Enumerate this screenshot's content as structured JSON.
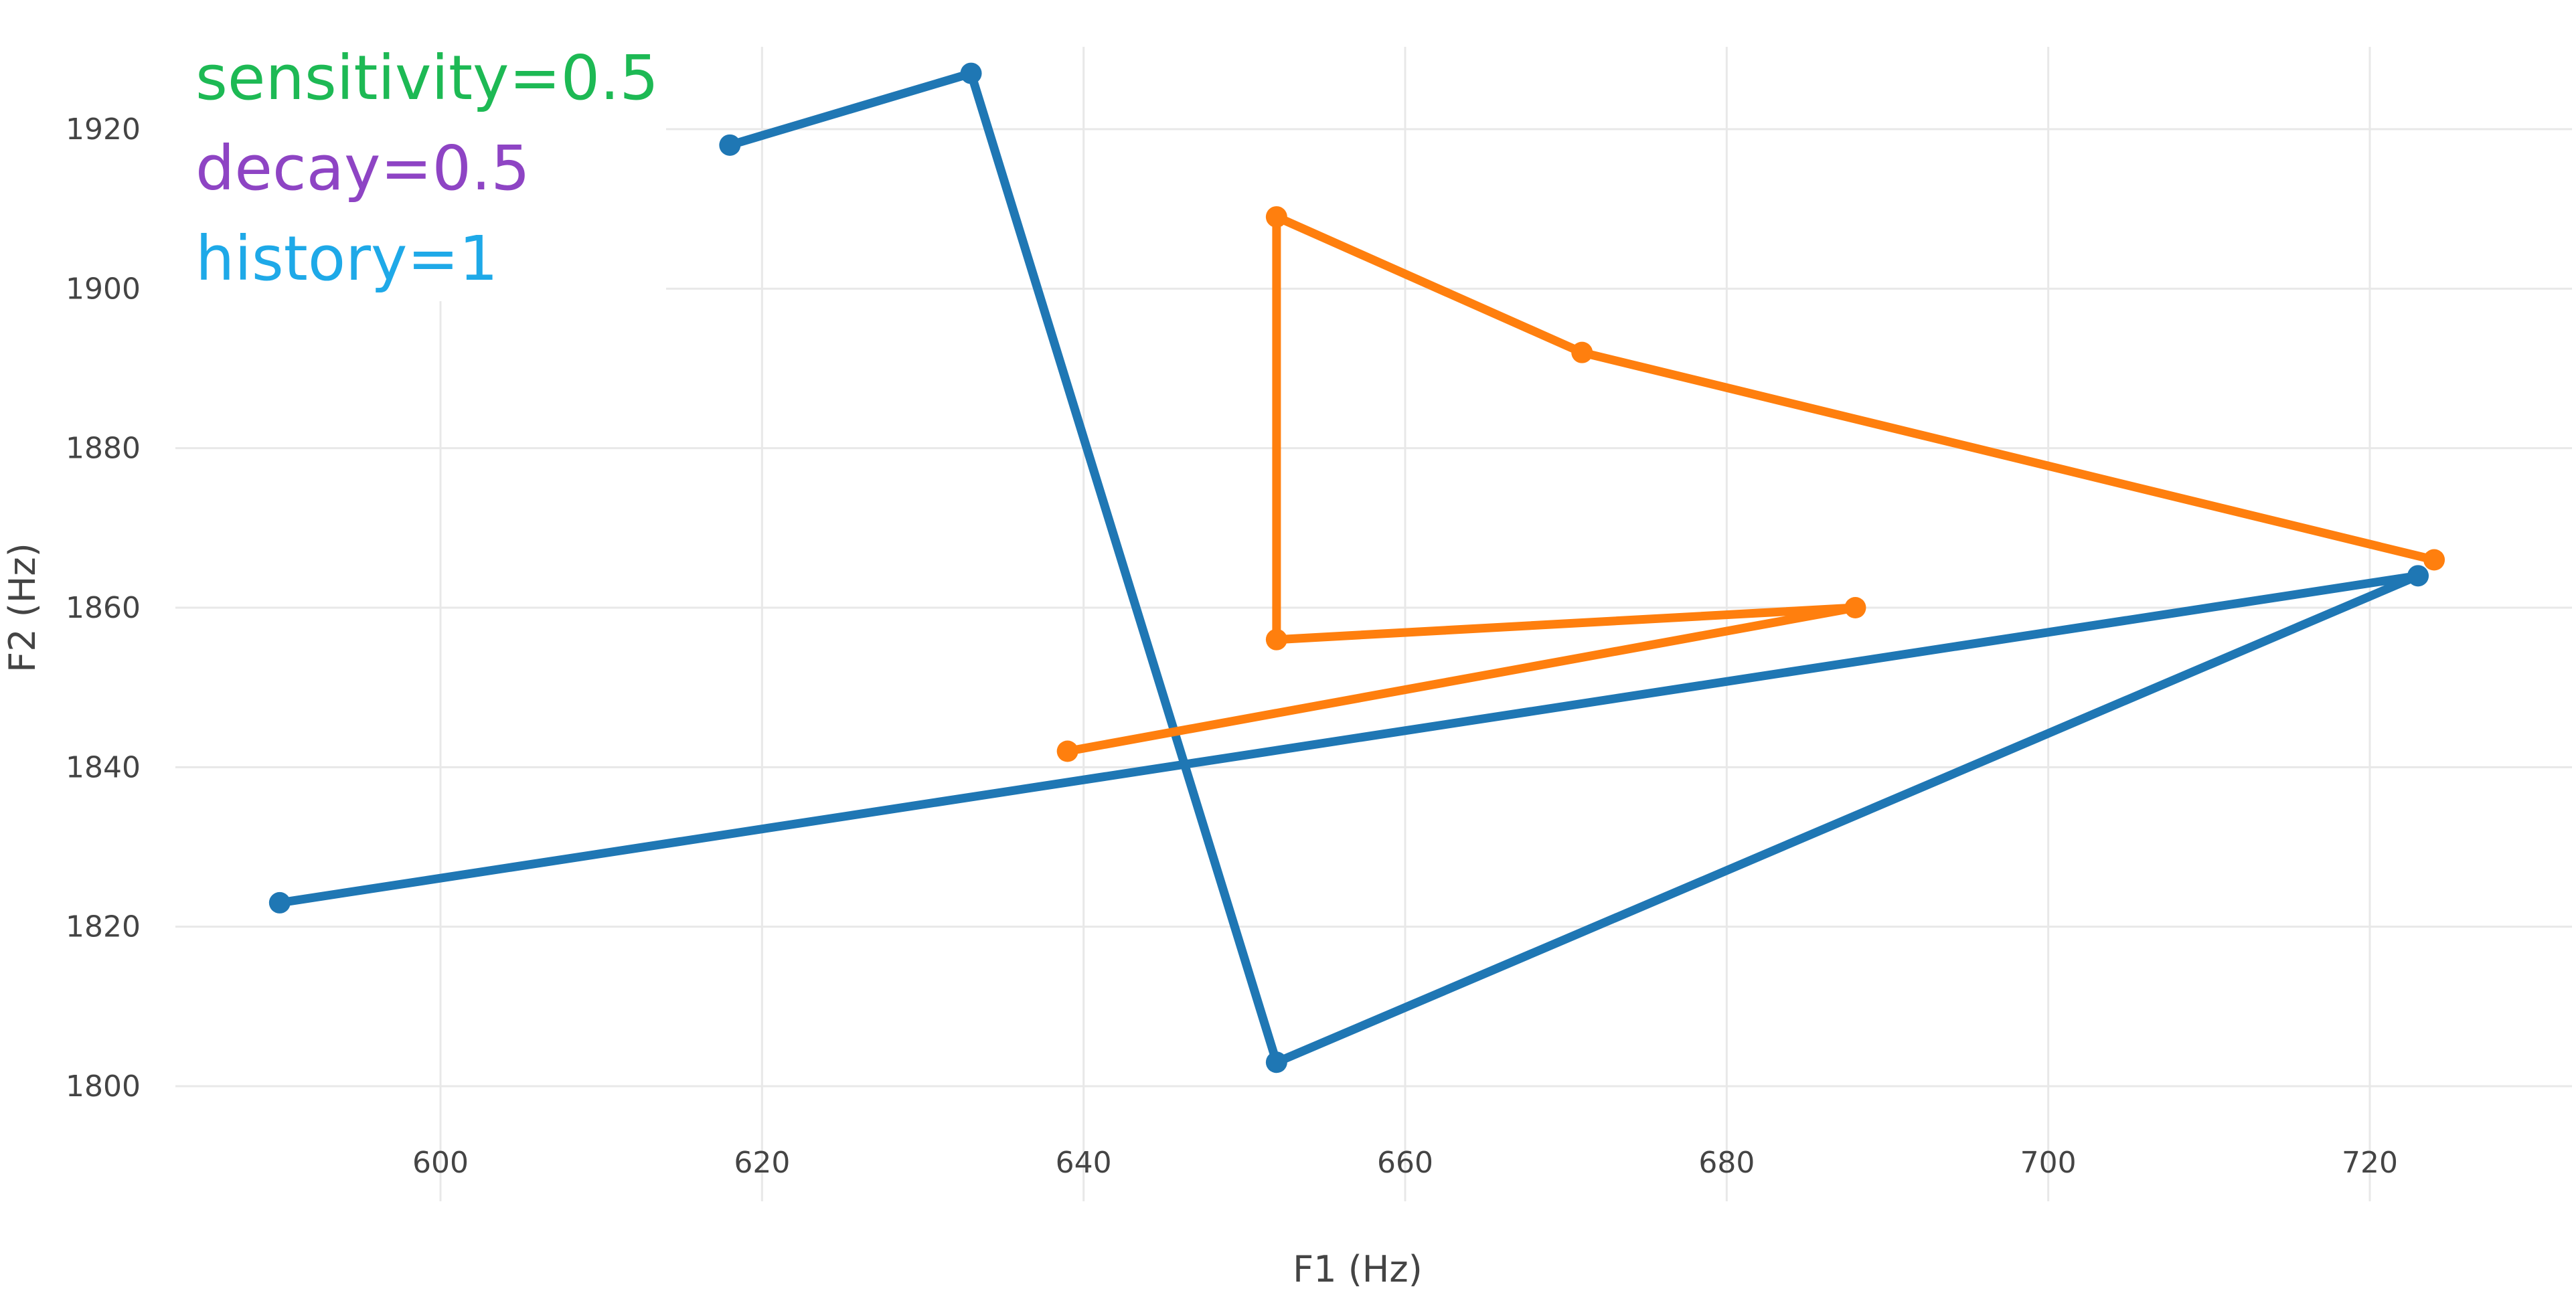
{
  "chart_data": {
    "type": "line",
    "title": "",
    "xlabel": "F1 (Hz)",
    "ylabel": "F2 (Hz)",
    "xlim": [
      583,
      733
    ],
    "ylim": [
      1797,
      1932
    ],
    "x_ticks": [
      600,
      620,
      640,
      660,
      680,
      700,
      720
    ],
    "y_ticks": [
      1800,
      1820,
      1840,
      1860,
      1880,
      1900,
      1920
    ],
    "grid": true,
    "legend": "none",
    "annotations": [
      {
        "text": "sensitivity=0.5",
        "color": "#1db954"
      },
      {
        "text": "decay=0.5",
        "color": "#8e44c4"
      },
      {
        "text": "history=1",
        "color": "#1ea9e8"
      }
    ],
    "series": [
      {
        "color": "#1f77b4",
        "points": [
          [
            618,
            1918
          ],
          [
            633,
            1927
          ],
          [
            652,
            1803
          ],
          [
            723,
            1864
          ],
          [
            590,
            1823
          ]
        ]
      },
      {
        "color": "#ff7f0e",
        "points": [
          [
            639,
            1842
          ],
          [
            688,
            1860
          ],
          [
            652,
            1856
          ],
          [
            652,
            1909
          ],
          [
            671,
            1892
          ],
          [
            724,
            1866
          ]
        ]
      }
    ]
  }
}
